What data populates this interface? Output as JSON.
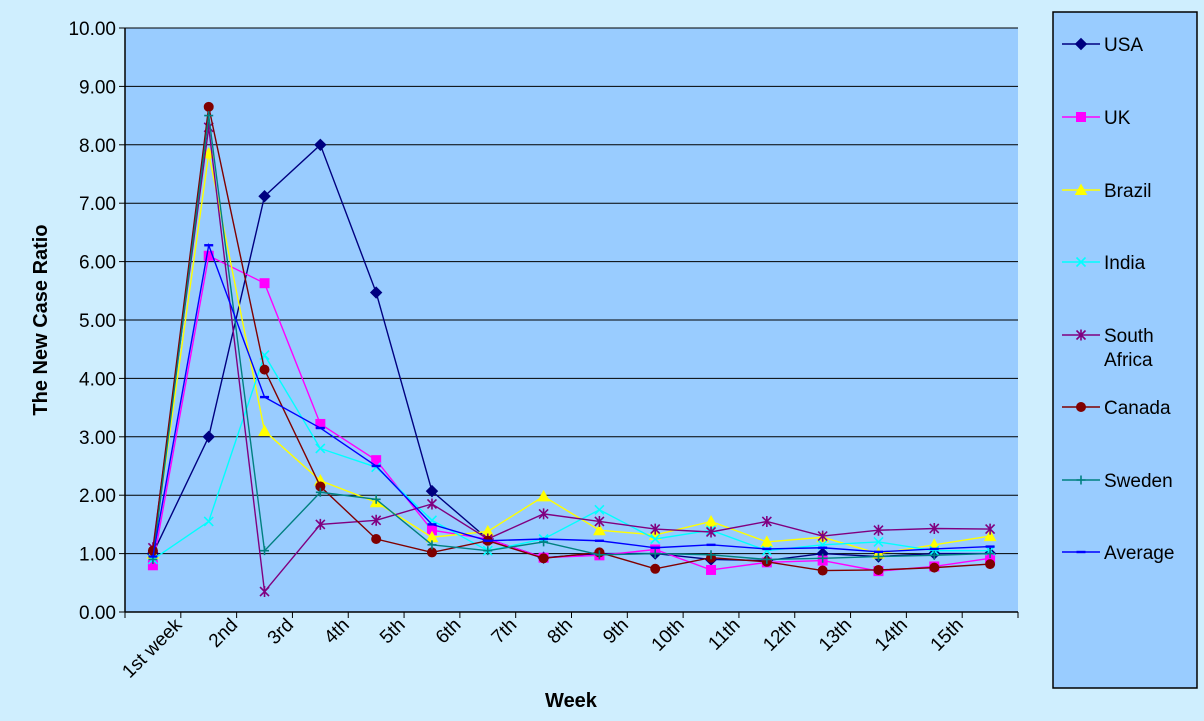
{
  "chart_data": {
    "type": "line",
    "title": "",
    "xlabel": "Week",
    "ylabel": "The New Case Ratio",
    "categories": [
      "",
      "1st week",
      "2nd",
      "3rd",
      "4th",
      "5th",
      "6th",
      "7th",
      "8th",
      "9th",
      "10th",
      "11th",
      "12th",
      "13th",
      "14th",
      "15th"
    ],
    "ylim": [
      0,
      10
    ],
    "y_ticks": [
      "0.00",
      "1.00",
      "2.00",
      "3.00",
      "4.00",
      "5.00",
      "6.00",
      "7.00",
      "8.00",
      "9.00",
      "10.00"
    ],
    "grid": true,
    "legend_position": "right",
    "colors": {
      "background": "#cfeefe",
      "plot_area": "#99ccff",
      "legend_box": "#99ccff",
      "gridline": "#000000"
    },
    "series": [
      {
        "name": "USA",
        "color": "#000080",
        "marker": "diamond",
        "values": [
          1.0,
          3.0,
          7.12,
          8.0,
          5.47,
          2.07,
          1.25,
          0.93,
          1.0,
          1.0,
          0.9,
          0.88,
          1.0,
          0.95,
          1.0,
          1.0
        ]
      },
      {
        "name": "UK",
        "color": "#ff00ff",
        "marker": "square",
        "values": [
          0.8,
          6.1,
          5.63,
          3.22,
          2.6,
          1.4,
          1.25,
          0.93,
          0.97,
          1.07,
          0.72,
          0.85,
          0.88,
          0.7,
          0.78,
          0.92
        ]
      },
      {
        "name": "Brazil",
        "color": "#ffff00",
        "marker": "triangle",
        "values": [
          1.0,
          7.85,
          3.1,
          2.25,
          1.88,
          1.28,
          1.38,
          1.98,
          1.4,
          1.32,
          1.55,
          1.2,
          1.28,
          1.0,
          1.15,
          1.3
        ]
      },
      {
        "name": "India",
        "color": "#00ffff",
        "marker": "x",
        "values": [
          0.9,
          1.55,
          4.4,
          2.8,
          2.48,
          1.57,
          1.05,
          1.25,
          1.75,
          1.25,
          1.4,
          1.05,
          1.15,
          1.2,
          1.05,
          1.05
        ]
      },
      {
        "name": "South Africa",
        "color": "#800080",
        "marker": "star",
        "values": [
          1.1,
          8.3,
          0.35,
          1.5,
          1.57,
          1.85,
          1.25,
          1.68,
          1.55,
          1.42,
          1.37,
          1.55,
          1.3,
          1.4,
          1.43,
          1.42
        ]
      },
      {
        "name": "Canada",
        "color": "#800000",
        "marker": "circle",
        "values": [
          1.05,
          8.65,
          4.15,
          2.15,
          1.25,
          1.02,
          1.22,
          0.92,
          1.02,
          0.74,
          0.93,
          0.86,
          0.71,
          0.72,
          0.76,
          0.82
        ]
      },
      {
        "name": "Sweden",
        "color": "#008080",
        "marker": "plus",
        "values": [
          0.9,
          8.5,
          1.05,
          2.05,
          1.93,
          1.15,
          1.05,
          1.2,
          0.98,
          1.0,
          0.98,
          0.9,
          0.92,
          0.95,
          0.97,
          1.0
        ]
      },
      {
        "name": "Average",
        "color": "#0000ff",
        "marker": "dash",
        "values": [
          0.95,
          6.28,
          3.68,
          3.15,
          2.5,
          1.5,
          1.22,
          1.25,
          1.22,
          1.1,
          1.15,
          1.08,
          1.1,
          1.03,
          1.08,
          1.12
        ]
      }
    ]
  }
}
